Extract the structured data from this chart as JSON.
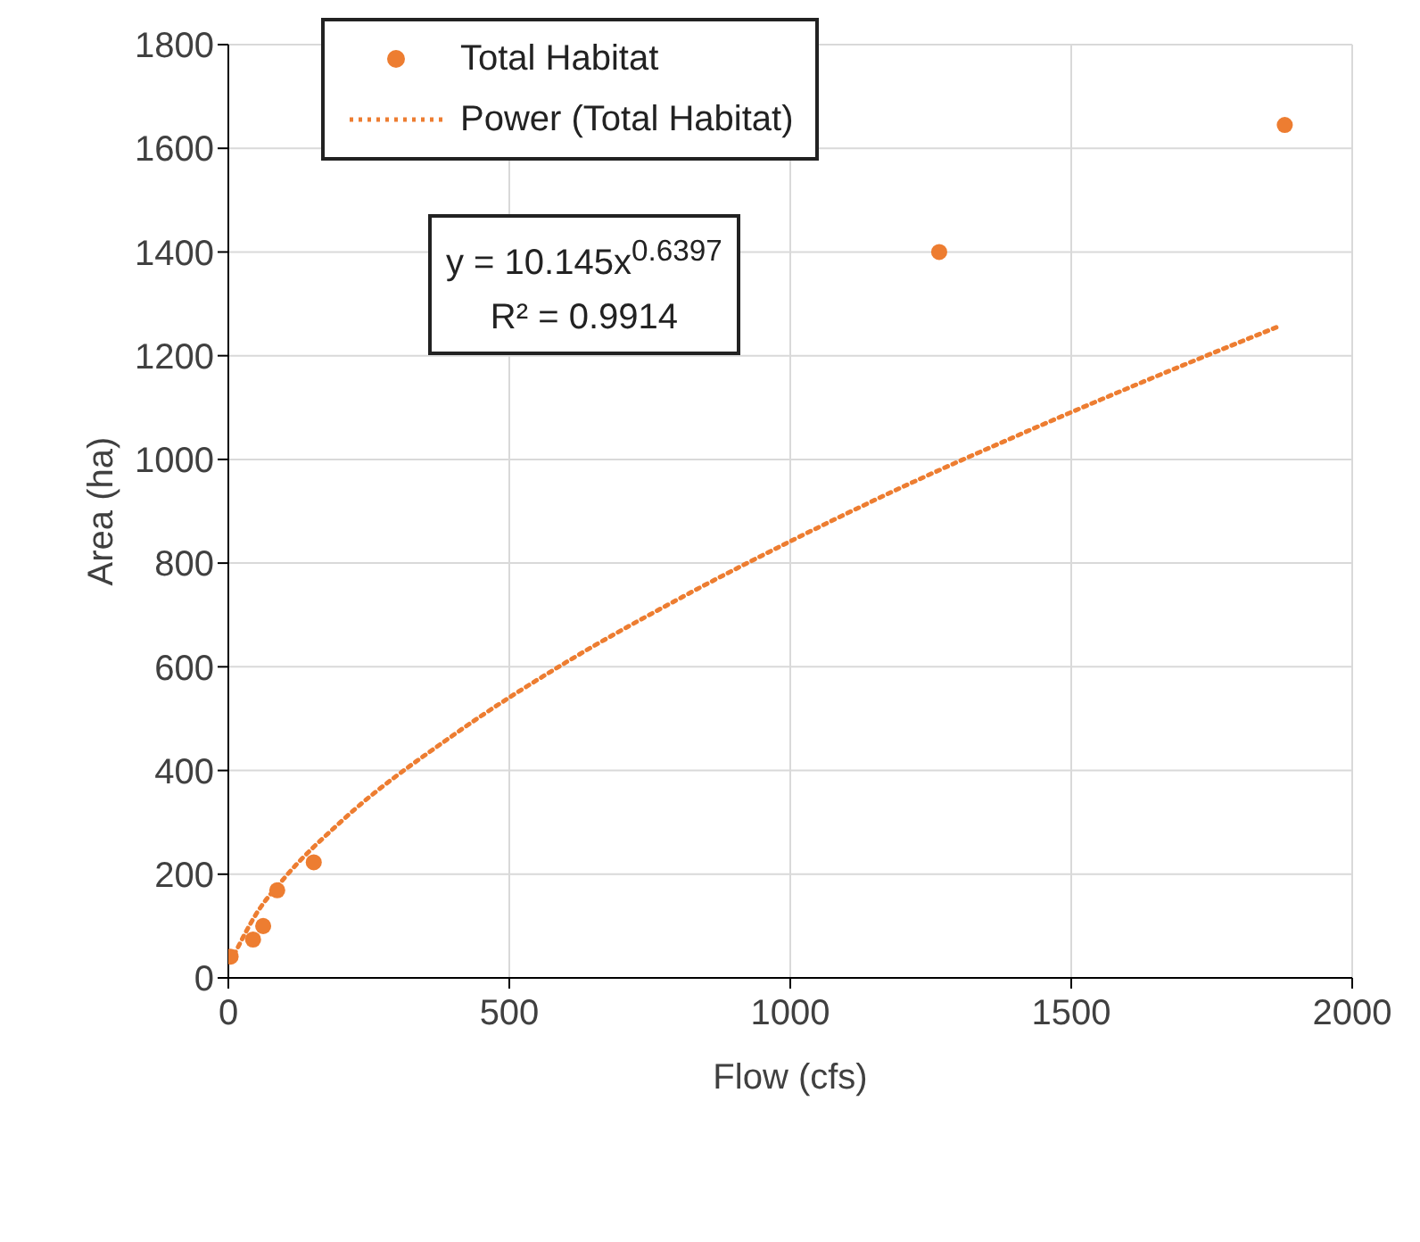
{
  "chart_data": {
    "type": "scatter",
    "xlabel": "Flow (cfs)",
    "ylabel": "Area (ha)",
    "xlim": [
      0,
      2000
    ],
    "xticks": [
      0,
      500,
      1000,
      1500,
      2000
    ],
    "ylim": [
      0,
      1800
    ],
    "yticks": [
      0,
      200,
      400,
      600,
      800,
      1000,
      1200,
      1400,
      1600,
      1800
    ],
    "grid": true,
    "legend": "top",
    "annotations": [
      "y = 10.145x$^{0.6397}$",
      "R² = 0.9914"
    ],
    "series": [
      {
        "name": "Total Habitat",
        "marker": "circle",
        "color": "#ed7d31",
        "x": [
          4,
          44,
          62,
          87,
          152,
          1265,
          1880
        ],
        "values": [
          41,
          74,
          100,
          169,
          223,
          1400,
          1645
        ]
      },
      {
        "name": "Power (Total Habitat)",
        "type": "line",
        "marker": "none",
        "line_style": "dotted",
        "color": "#ed7d31",
        "x": [
          10,
          50,
          100,
          200,
          400,
          600,
          800,
          1000,
          1200,
          1400,
          1600,
          1870
        ],
        "values": [
          44,
          124,
          193,
          301,
          468,
          608,
          730,
          842,
          947,
          1044,
          1137,
          1257
        ]
      }
    ]
  }
}
